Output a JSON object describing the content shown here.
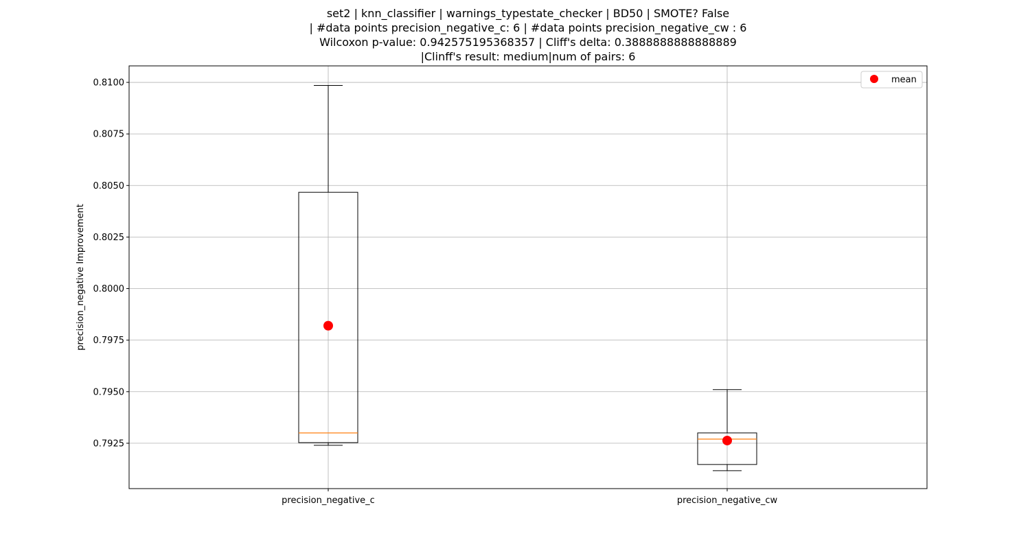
{
  "chart_data": {
    "type": "box",
    "title": [
      "set2 | knn_classifier | warnings_typestate_checker | BD50 | SMOTE? False",
      "| #data points precision_negative_c: 6 | #data points precision_negative_cw : 6",
      "Wilcoxon p-value: 0.942575195368357 | Cliff's delta: 0.3888888888888889",
      "|Clinff's result: medium|num of pairs: 6"
    ],
    "xlabel": "",
    "ylabel": "precision_negative Improvement",
    "ylim": [
      0.7903,
      0.8108
    ],
    "yticks": [
      0.7925,
      0.795,
      0.7975,
      0.8,
      0.8025,
      0.805,
      0.8075,
      0.81
    ],
    "ytick_labels": [
      "0.7925",
      "0.7950",
      "0.7975",
      "0.8000",
      "0.8025",
      "0.8050",
      "0.8075",
      "0.8100"
    ],
    "grid": true,
    "legend": {
      "placement": "top-right",
      "entries": [
        {
          "label": "mean",
          "marker": "circle",
          "color": "#ff0000"
        }
      ]
    },
    "colors": {
      "box": "#000000",
      "median": "#ff7f0e",
      "mean": "#ff0000",
      "grid": "#b0b0b0"
    },
    "categories": [
      "precision_negative_c",
      "precision_negative_cw"
    ],
    "series": [
      {
        "whisker_low": 0.7924,
        "q1": 0.79253,
        "median": 0.793,
        "q3": 0.80467,
        "whisker_high": 0.80985,
        "mean": 0.7982
      },
      {
        "whisker_low": 0.79117,
        "q1": 0.79147,
        "median": 0.7927,
        "q3": 0.793,
        "whisker_high": 0.7951,
        "mean": 0.79263
      }
    ]
  }
}
